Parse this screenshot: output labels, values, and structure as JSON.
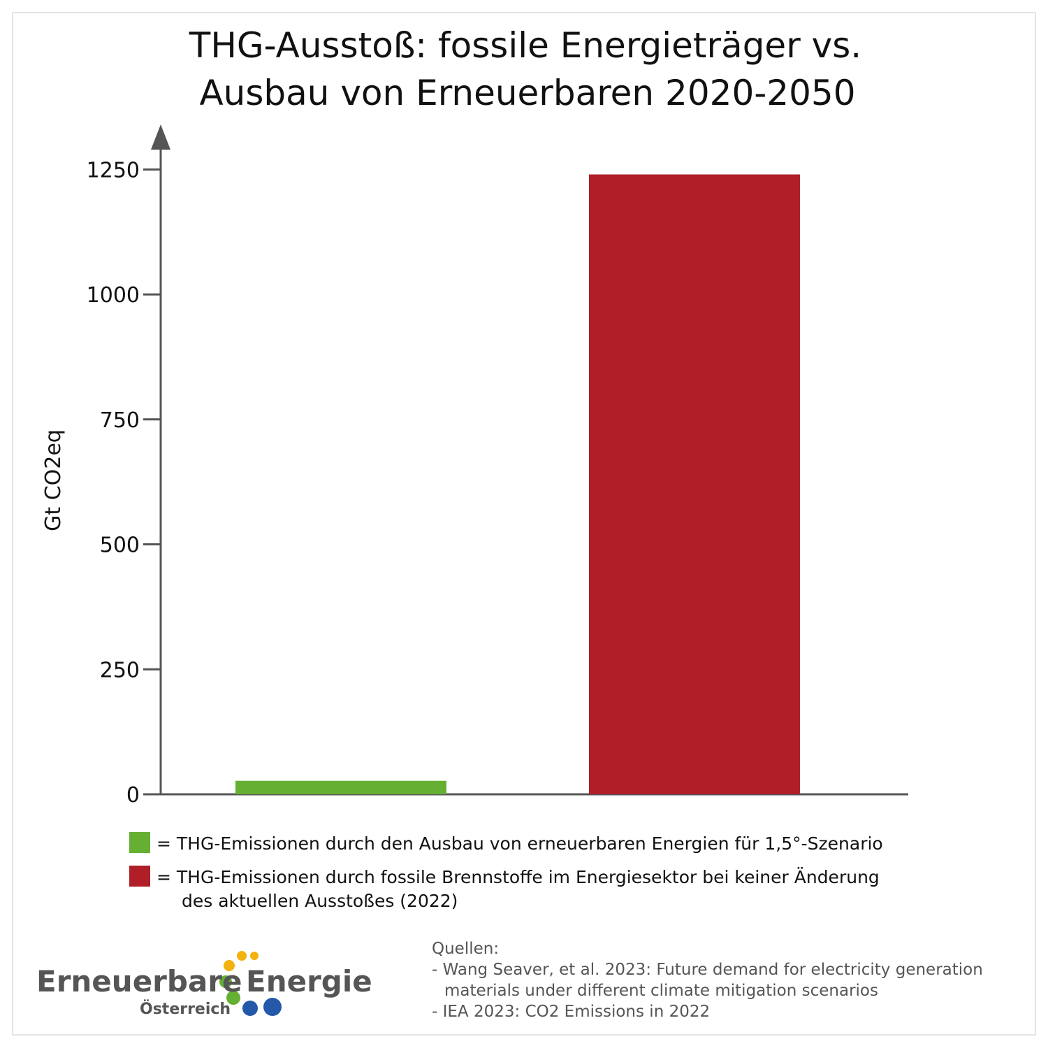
{
  "chart_data": {
    "type": "bar",
    "title": [
      "THG-Ausstoß: fossile Energieträger vs.",
      "Ausbau von Erneuerbaren 2020-2050"
    ],
    "ylabel": "Gt CO2eq",
    "categories": [
      null,
      null
    ],
    "values": [
      27,
      1240
    ],
    "colors": [
      "#65b032",
      "#b01f28"
    ],
    "ylim": [
      0,
      1340
    ],
    "yticks": [
      0,
      250,
      500,
      750,
      1000,
      1250
    ],
    "legend": [
      {
        "color": "#65b032",
        "lines": [
          "= THG-Emissionen durch den Ausbau von erneuerbaren Energien für 1,5°-Szenario"
        ]
      },
      {
        "color": "#b01f28",
        "lines": [
          "= THG-Emissionen durch fossile Brennstoffe im Energiesektor bei keiner Änderung",
          "des aktuellen Ausstoßes (2022)"
        ]
      }
    ]
  },
  "sources": [
    "Quellen:",
    "- Wang Seaver, et al. 2023: Future demand for electricity generation",
    "materials under different climate mitigation scenarios",
    "- IEA 2023: CO2 Emissions in 2022"
  ],
  "logo": {
    "word1": "Erneuerbare",
    "word2": "Energie",
    "sub": "Österreich"
  }
}
